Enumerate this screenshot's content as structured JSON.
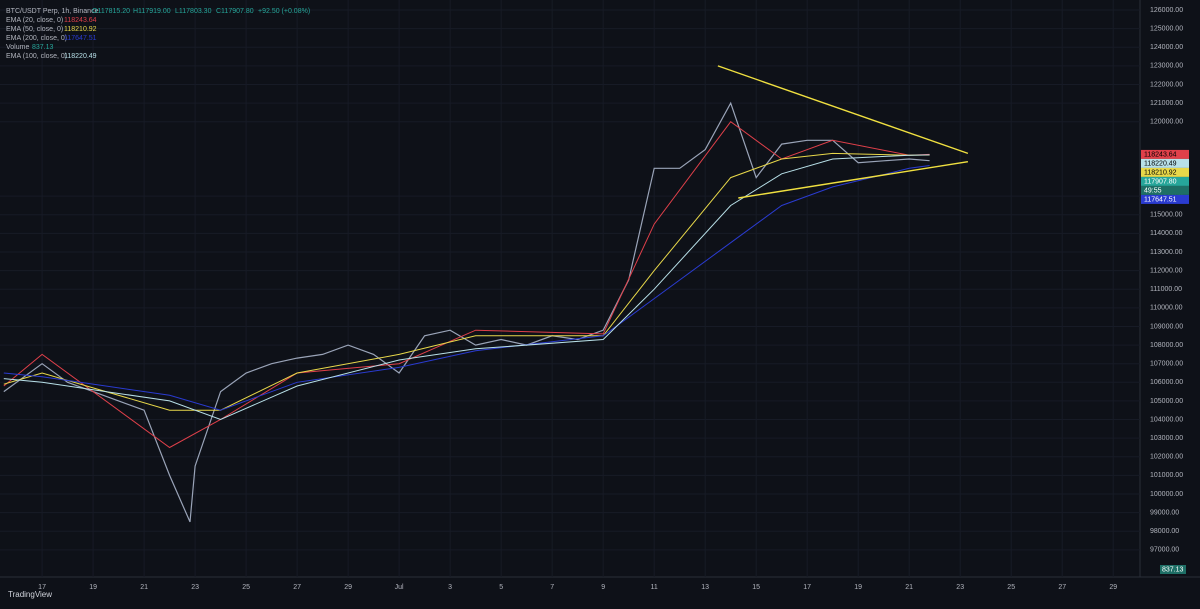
{
  "header": {
    "symbol": "BTC/USDT Perp, 1h, Binance",
    "open": "O117815.20",
    "high": "H117919.00",
    "low": "L117803.30",
    "close": "C117907.80",
    "change": "+92.50 (+0.08%)",
    "brand": "TradingView"
  },
  "chart_data": {
    "type": "line",
    "xlim": [
      -1.65,
      43.05
    ],
    "ylim": [
      95540,
      126540
    ],
    "xticks": [
      {
        "value": 0,
        "label": "17"
      },
      {
        "value": 2,
        "label": "19"
      },
      {
        "value": 4,
        "label": "21"
      },
      {
        "value": 6,
        "label": "23"
      },
      {
        "value": 8,
        "label": "25"
      },
      {
        "value": 10,
        "label": "27"
      },
      {
        "value": 12,
        "label": "29"
      },
      {
        "value": 14,
        "label": "Jul"
      },
      {
        "value": 16,
        "label": "3"
      },
      {
        "value": 18,
        "label": "5"
      },
      {
        "value": 20,
        "label": "7"
      },
      {
        "value": 22,
        "label": "9"
      },
      {
        "value": 24,
        "label": "11"
      },
      {
        "value": 26,
        "label": "13"
      },
      {
        "value": 28,
        "label": "15"
      },
      {
        "value": 30,
        "label": "17"
      },
      {
        "value": 32,
        "label": "19"
      },
      {
        "value": 34,
        "label": "21"
      },
      {
        "value": 36,
        "label": "23"
      },
      {
        "value": 38,
        "label": "25"
      },
      {
        "value": 40,
        "label": "27"
      },
      {
        "value": 42,
        "label": "29"
      }
    ],
    "yticks": [
      {
        "value": 126000,
        "label": "126000.00"
      },
      {
        "value": 125000,
        "label": "125000.00"
      },
      {
        "value": 124000,
        "label": "124000.00"
      },
      {
        "value": 123000,
        "label": "123000.00"
      },
      {
        "value": 122000,
        "label": "122000.00"
      },
      {
        "value": 121000,
        "label": "121000.00"
      },
      {
        "value": 120000,
        "label": "120000.00"
      },
      {
        "value": 116000,
        "label": "116000.00"
      },
      {
        "value": 115000,
        "label": "115000.00"
      },
      {
        "value": 114000,
        "label": "114000.00"
      },
      {
        "value": 113000,
        "label": "113000.00"
      },
      {
        "value": 112000,
        "label": "112000.00"
      },
      {
        "value": 111000,
        "label": "111000.00"
      },
      {
        "value": 110000,
        "label": "110000.00"
      },
      {
        "value": 109000,
        "label": "109000.00"
      },
      {
        "value": 108000,
        "label": "108000.00"
      },
      {
        "value": 107000,
        "label": "107000.00"
      },
      {
        "value": 106000,
        "label": "106000.00"
      },
      {
        "value": 105000,
        "label": "105000.00"
      },
      {
        "value": 104000,
        "label": "104000.00"
      },
      {
        "value": 103000,
        "label": "103000.00"
      },
      {
        "value": 102000,
        "label": "102000.00"
      },
      {
        "value": 101000,
        "label": "101000.00"
      },
      {
        "value": 100000,
        "label": "100000.00"
      },
      {
        "value": 99000,
        "label": "99000.00"
      },
      {
        "value": 98000,
        "label": "98000.00"
      },
      {
        "value": 97000,
        "label": "97000.00"
      }
    ],
    "grid": true,
    "series": [
      {
        "color": "#9aa4b8",
        "x": [
          -1.5,
          0,
          1,
          2,
          3,
          4,
          5,
          5.8,
          6,
          7,
          8,
          9,
          10,
          11,
          12,
          13,
          14,
          15,
          16,
          17,
          18,
          19,
          20,
          21,
          22,
          23,
          24,
          25,
          26,
          27,
          28,
          29,
          30,
          31,
          32,
          33,
          34,
          34.8
        ],
        "values": [
          105500,
          107000,
          106000,
          105500,
          105000,
          104500,
          101000,
          98500,
          101500,
          105500,
          106500,
          107000,
          107300,
          107500,
          108000,
          107500,
          106500,
          108500,
          108800,
          108000,
          108300,
          108000,
          108500,
          108300,
          108800,
          111500,
          117500,
          117500,
          118500,
          121000,
          117000,
          118800,
          119000,
          119000,
          117800,
          117900,
          118000,
          117907.8
        ]
      },
      {
        "name": "EMA (20, close, 0)",
        "last_label": "118243.64",
        "color": "#e0404a",
        "x": [
          -1.5,
          0,
          5,
          7,
          10,
          14,
          17,
          22,
          24,
          27,
          29,
          31,
          34,
          34.8
        ],
        "values": [
          105800,
          107500,
          102500,
          104000,
          106500,
          107000,
          108800,
          108600,
          114500,
          120000,
          118000,
          119000,
          118200,
          118243.64
        ]
      },
      {
        "name": "EMA (50, close, 0)",
        "last_label": "118210.92",
        "color": "#e8d84a",
        "x": [
          -1.5,
          0,
          5,
          7,
          10,
          14,
          17,
          22,
          24,
          27,
          29,
          31,
          34,
          34.8
        ],
        "values": [
          105900,
          106500,
          104500,
          104500,
          106500,
          107500,
          108500,
          108500,
          112000,
          117000,
          118000,
          118300,
          118200,
          118210.92
        ]
      },
      {
        "name": "EMA (200, close, 0)",
        "last_label": "117647.51",
        "color": "#2a3bd0",
        "x": [
          -1.5,
          0,
          5,
          7,
          10,
          14,
          17,
          22,
          24,
          27,
          29,
          31,
          34,
          34.8
        ],
        "values": [
          106500,
          106300,
          105300,
          104500,
          106000,
          106800,
          107700,
          108500,
          110500,
          113500,
          115500,
          116500,
          117500,
          117647.51
        ]
      },
      {
        "name": "EMA (100, close, 0)",
        "last_label": "118220.49",
        "color": "#b8e0e8",
        "x": [
          -1.5,
          0,
          5,
          7,
          10,
          14,
          17,
          22,
          24,
          27,
          29,
          31,
          34,
          34.8
        ],
        "values": [
          106200,
          106000,
          105000,
          104000,
          105800,
          107200,
          107800,
          108300,
          111000,
          115500,
          117200,
          118000,
          118200,
          118220.49
        ]
      }
    ],
    "volume": {
      "name": "Volume",
      "label": "837.13"
    },
    "trendlines": [
      {
        "color": "#f0e040",
        "x": [
          26.5,
          36.3
        ],
        "values": [
          123000,
          118300
        ]
      },
      {
        "color": "#f0e040",
        "x": [
          27.3,
          36.3
        ],
        "values": [
          115900,
          117850
        ]
      }
    ],
    "price_labels": [
      {
        "value": 118243.64,
        "label": "118243.64",
        "color": "#e0404a"
      },
      {
        "value": 118220.49,
        "label": "118220.49",
        "color": "#b8e0e8"
      },
      {
        "value": 118210.92,
        "label": "118210.92",
        "color": "#e8d84a"
      },
      {
        "value": 117907.8,
        "label": "117907.80",
        "color": "#26a69a"
      },
      {
        "value": 117647.51,
        "label": "117647.51",
        "color": "#2a3bd0"
      }
    ],
    "countdown": "49:55"
  }
}
